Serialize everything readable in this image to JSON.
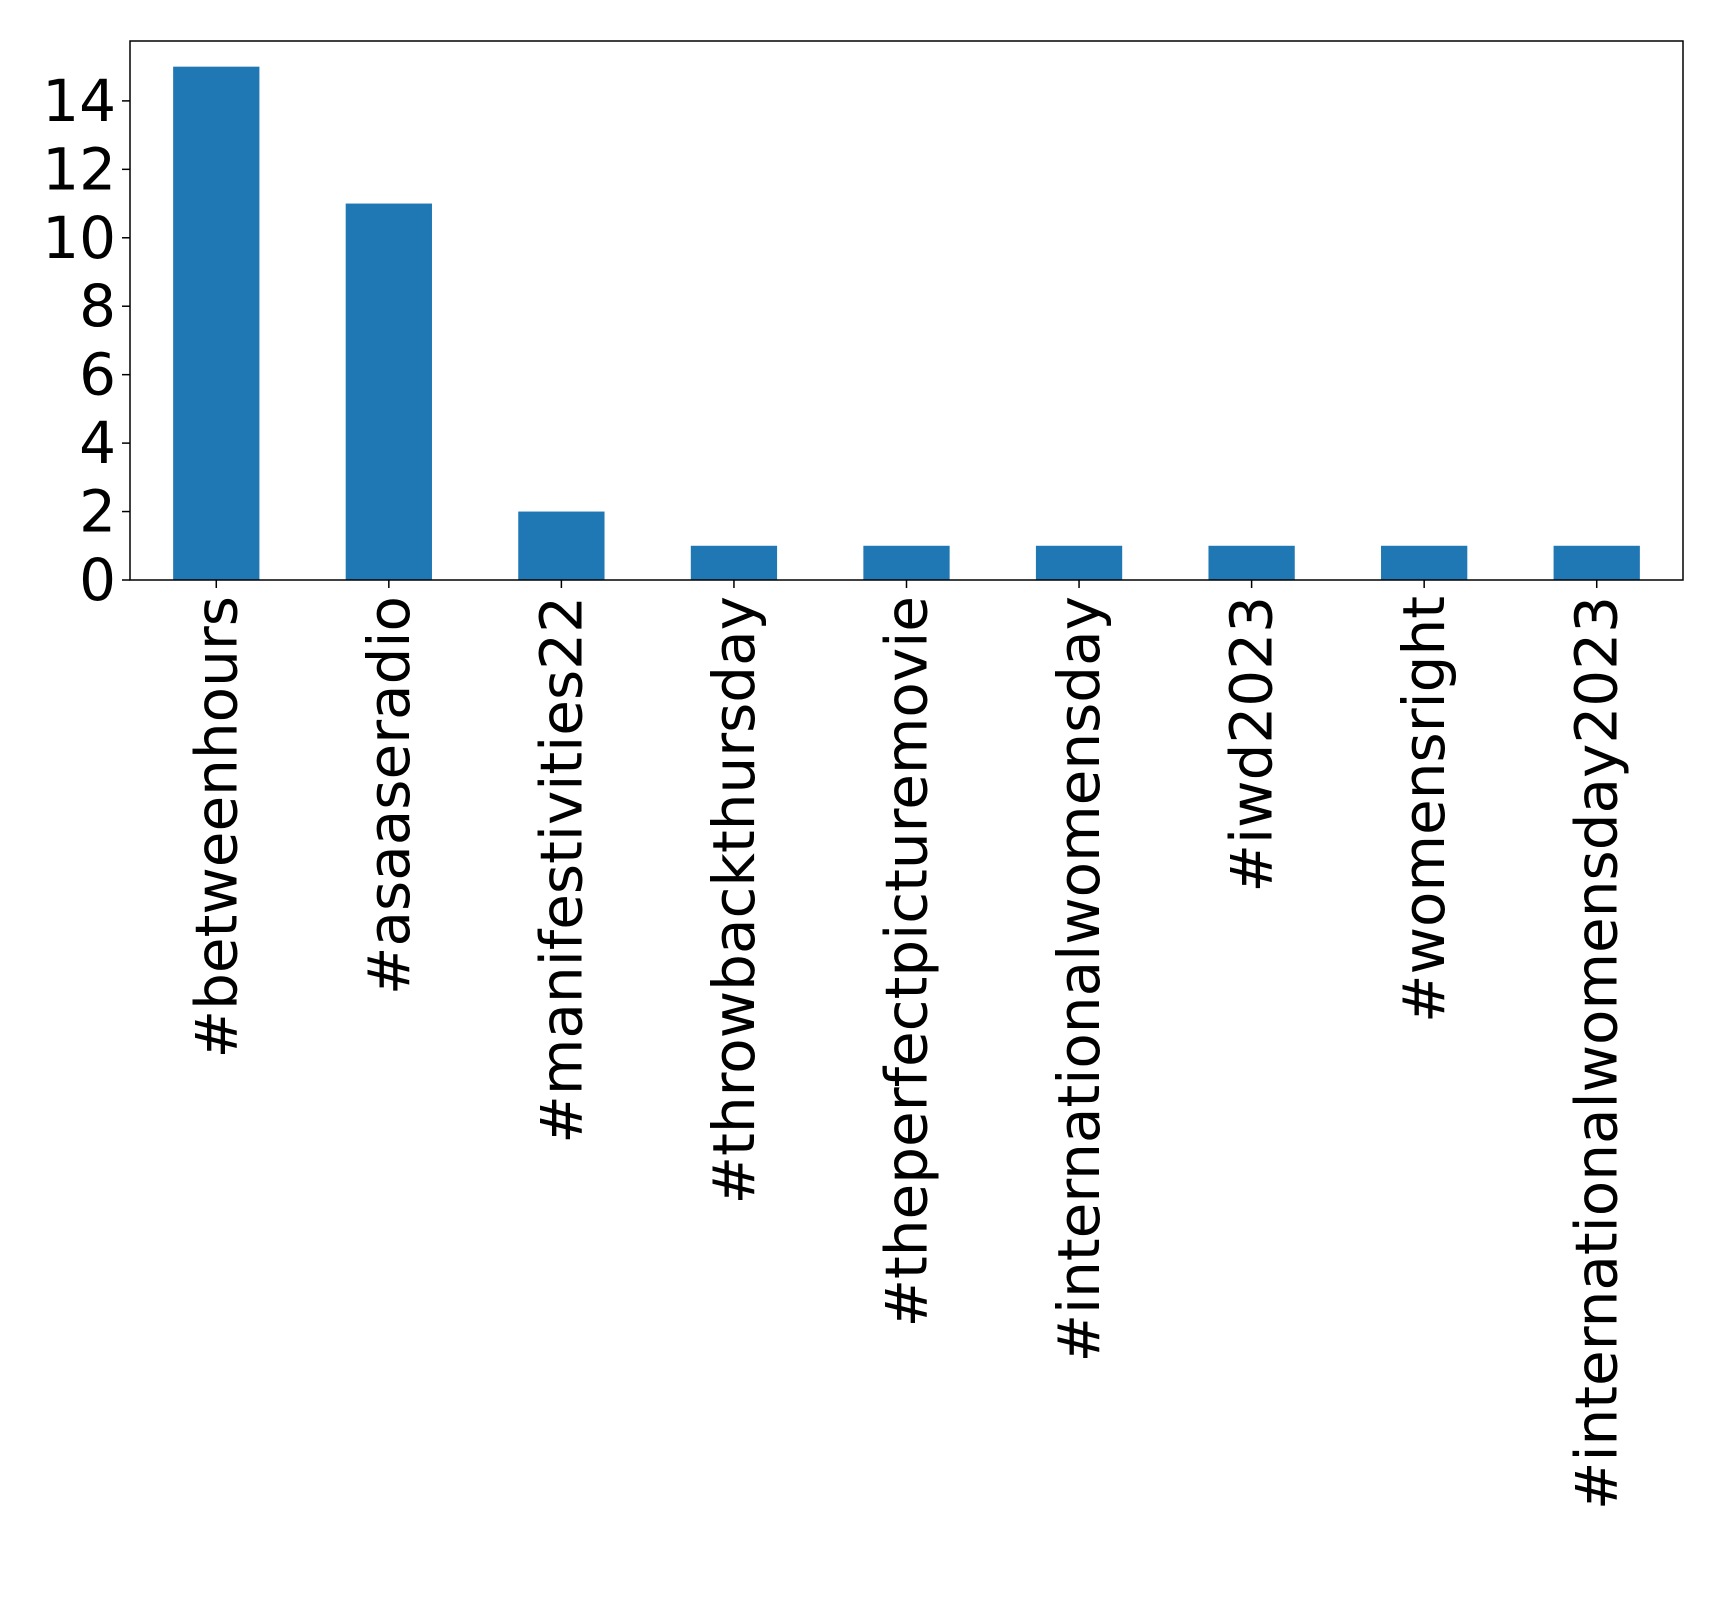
{
  "chart_data": {
    "type": "bar",
    "categories": [
      "#betweenhours",
      "#asaaseradio",
      "#manifestivities22",
      "#throwbackthursday",
      "#theperfectpicturemovie",
      "#internationalwomensday",
      "#iwd2023",
      "#womensright",
      "#internationalwomensday2023"
    ],
    "values": [
      15,
      11,
      2,
      1,
      1,
      1,
      1,
      1,
      1
    ],
    "title": "",
    "xlabel": "",
    "ylabel": "",
    "ylim": [
      0,
      15.75
    ],
    "yticks": [
      0,
      2,
      4,
      6,
      8,
      10,
      12,
      14
    ],
    "ytick_labels": [
      "0",
      "2",
      "4",
      "6",
      "8",
      "10",
      "12",
      "14"
    ],
    "bar_color": "#1f77b4",
    "grid": false,
    "legend": "none"
  }
}
